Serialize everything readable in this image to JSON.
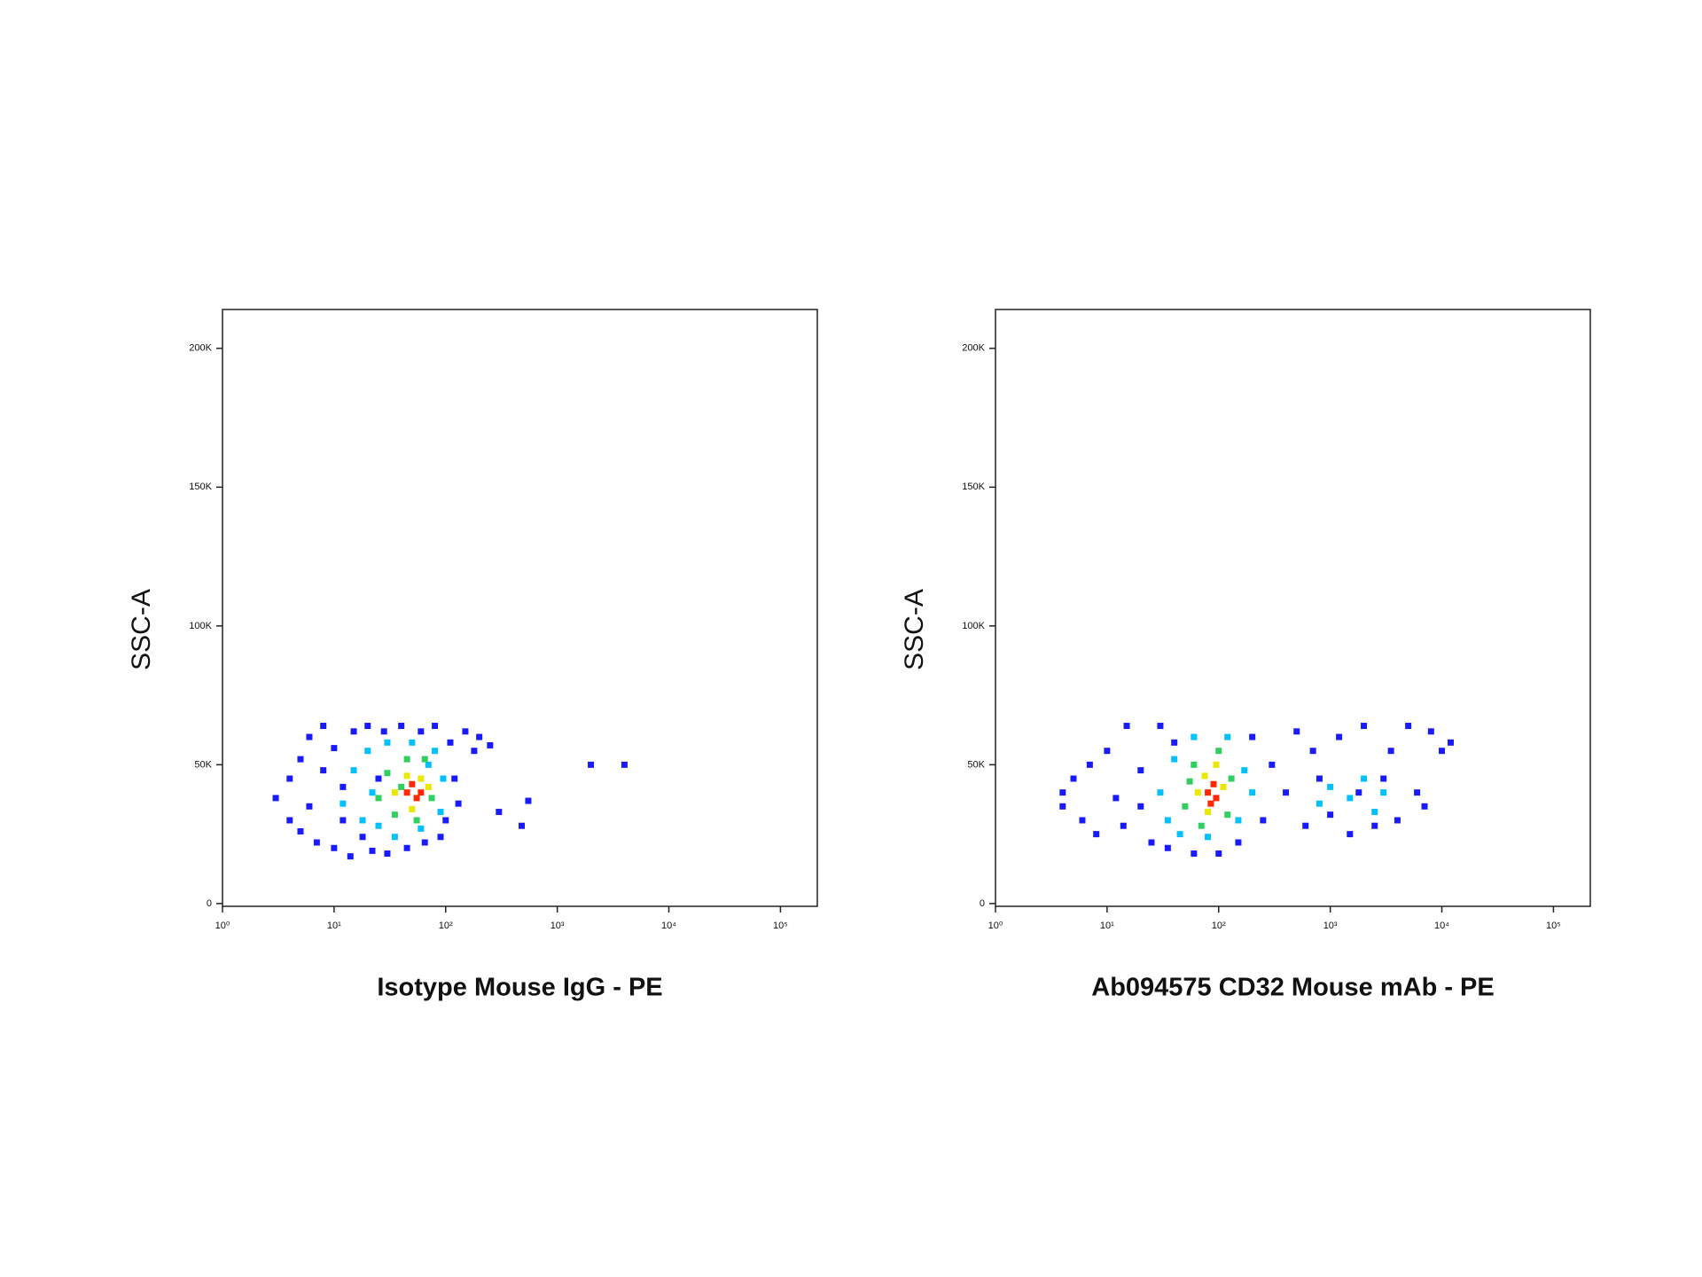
{
  "chart_data": [
    {
      "type": "scatter",
      "x_label": "Isotype Mouse IgG - PE",
      "y_label": "SSC-A",
      "x_log": true,
      "xlim": [
        1,
        214000
      ],
      "ylim": [
        -1000,
        214000
      ],
      "xticks": [
        {
          "value": 1,
          "label": "10⁰"
        },
        {
          "value": 10,
          "label": "10¹"
        },
        {
          "value": 100,
          "label": "10²"
        },
        {
          "value": 1000,
          "label": "10³"
        },
        {
          "value": 10000,
          "label": "10⁴"
        },
        {
          "value": 100000,
          "label": "10⁵"
        }
      ],
      "yticks": [
        0,
        {
          "value": 50000,
          "label": "50K"
        },
        {
          "value": 100000,
          "label": "100K"
        },
        {
          "value": 150000,
          "label": "150K"
        },
        {
          "value": 200000,
          "label": "200K"
        }
      ],
      "series": [
        {
          "color": "#1a1aff",
          "x": [
            3,
            4,
            4,
            5,
            5,
            6,
            6,
            7,
            8,
            8,
            10,
            10,
            12,
            14,
            15,
            18,
            20,
            22,
            28,
            30,
            40,
            45,
            60,
            65,
            80,
            90,
            100,
            110,
            120,
            150,
            180,
            200,
            250,
            130,
            2000,
            4000,
            550,
            300,
            480,
            25,
            12
          ],
          "values": [
            38000,
            30000,
            45000,
            52000,
            26000,
            60000,
            35000,
            22000,
            48000,
            64000,
            20000,
            56000,
            30000,
            17000,
            62000,
            24000,
            64000,
            19000,
            62000,
            18000,
            64000,
            20000,
            62000,
            22000,
            64000,
            24000,
            30000,
            58000,
            45000,
            62000,
            55000,
            60000,
            57000,
            36000,
            50000,
            50000,
            37000,
            33000,
            28000,
            45000,
            42000
          ]
        },
        {
          "color": "#00c0ff",
          "x": [
            12,
            15,
            18,
            20,
            25,
            30,
            35,
            50,
            60,
            80,
            90,
            95,
            22,
            70
          ],
          "values": [
            36000,
            48000,
            30000,
            55000,
            28000,
            58000,
            24000,
            58000,
            27000,
            55000,
            33000,
            45000,
            40000,
            50000
          ]
        },
        {
          "color": "#30d060",
          "x": [
            25,
            30,
            35,
            45,
            55,
            65,
            75,
            40
          ],
          "values": [
            38000,
            47000,
            32000,
            52000,
            30000,
            52000,
            38000,
            42000
          ]
        },
        {
          "color": "#e8e800",
          "x": [
            35,
            45,
            50,
            60,
            70
          ],
          "values": [
            40000,
            46000,
            34000,
            45000,
            42000
          ]
        },
        {
          "color": "#ff2800",
          "x": [
            45,
            55,
            50,
            60
          ],
          "values": [
            40000,
            38000,
            43000,
            40000
          ]
        }
      ]
    },
    {
      "type": "scatter",
      "x_label": "Ab094575 CD32 Mouse mAb - PE",
      "y_label": "SSC-A",
      "x_log": true,
      "xlim": [
        1,
        214000
      ],
      "ylim": [
        -1000,
        214000
      ],
      "xticks": [
        {
          "value": 1,
          "label": "10⁰"
        },
        {
          "value": 10,
          "label": "10¹"
        },
        {
          "value": 100,
          "label": "10²"
        },
        {
          "value": 1000,
          "label": "10³"
        },
        {
          "value": 10000,
          "label": "10⁴"
        },
        {
          "value": 100000,
          "label": "10⁵"
        }
      ],
      "yticks": [
        0,
        {
          "value": 50000,
          "label": "50K"
        },
        {
          "value": 100000,
          "label": "100K"
        },
        {
          "value": 150000,
          "label": "150K"
        },
        {
          "value": 200000,
          "label": "200K"
        }
      ],
      "series": [
        {
          "color": "#1a1aff",
          "x": [
            4,
            4,
            5,
            6,
            7,
            8,
            10,
            12,
            14,
            15,
            20,
            25,
            30,
            35,
            60,
            100,
            150,
            200,
            250,
            300,
            400,
            500,
            600,
            800,
            1000,
            1200,
            1500,
            2000,
            2500,
            3500,
            4000,
            5000,
            6000,
            8000,
            10000,
            12000,
            7000,
            3000,
            700,
            1800,
            20,
            40
          ],
          "values": [
            40000,
            35000,
            45000,
            30000,
            50000,
            25000,
            55000,
            38000,
            28000,
            64000,
            48000,
            22000,
            64000,
            20000,
            18000,
            18000,
            22000,
            60000,
            30000,
            50000,
            40000,
            62000,
            28000,
            45000,
            32000,
            60000,
            25000,
            64000,
            28000,
            55000,
            30000,
            64000,
            40000,
            62000,
            55000,
            58000,
            35000,
            45000,
            55000,
            40000,
            35000,
            58000
          ]
        },
        {
          "color": "#00c0ff",
          "x": [
            30,
            35,
            40,
            45,
            60,
            80,
            120,
            150,
            170,
            200,
            1500,
            2000,
            2500,
            3000,
            1000,
            800
          ],
          "values": [
            40000,
            30000,
            52000,
            25000,
            60000,
            24000,
            60000,
            30000,
            48000,
            40000,
            38000,
            45000,
            33000,
            40000,
            42000,
            36000
          ]
        },
        {
          "color": "#30d060",
          "x": [
            50,
            60,
            70,
            100,
            120,
            130,
            55
          ],
          "values": [
            35000,
            50000,
            28000,
            55000,
            32000,
            45000,
            44000
          ]
        },
        {
          "color": "#e8e800",
          "x": [
            65,
            75,
            80,
            110,
            95
          ],
          "values": [
            40000,
            46000,
            33000,
            42000,
            50000
          ]
        },
        {
          "color": "#ff2800",
          "x": [
            80,
            95,
            90,
            85
          ],
          "values": [
            40000,
            38000,
            43000,
            36000
          ]
        }
      ]
    }
  ]
}
